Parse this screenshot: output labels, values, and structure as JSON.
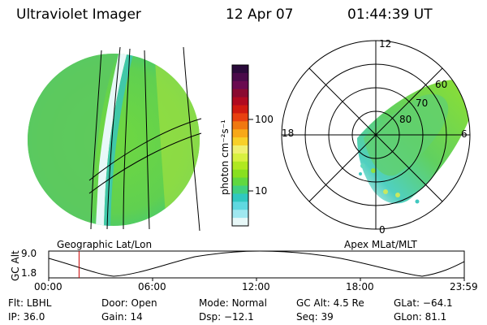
{
  "header": {
    "instrument": "Ultraviolet Imager",
    "date": "12 Apr 07",
    "time": "01:44:39 UT"
  },
  "colorbar": {
    "unit_label": "photon cm⁻²s⁻¹",
    "ticks": [
      "100",
      "10"
    ],
    "colors": [
      "#2a0a3a",
      "#4a0a4a",
      "#6a0a50",
      "#8a0a30",
      "#b00a20",
      "#d01a10",
      "#e84010",
      "#f07810",
      "#f8a818",
      "#f8d028",
      "#f0f070",
      "#d8f040",
      "#b0e820",
      "#88e020",
      "#60d840",
      "#40d080",
      "#30c8c0",
      "#60d8e0",
      "#a0e8f0",
      "#e8f8f8"
    ]
  },
  "panels": {
    "left_label": "Geographic Lat/Lon",
    "right_label": "Apex MLat/MLT"
  },
  "polar": {
    "mlt_labels": [
      "12",
      "18",
      "6",
      "0"
    ],
    "mlat_labels": [
      "60",
      "70",
      "80"
    ]
  },
  "altitude_plot": {
    "ylabel": "GC Alt",
    "ytick_top": "9.0",
    "ytick_bottom": "1.8",
    "xticks": [
      "00:00",
      "06:00",
      "12:00",
      "18:00",
      "23:59"
    ],
    "current_time_fraction": 0.073
  },
  "info": {
    "row1": [
      {
        "label": "Flt:",
        "value": "LBHL"
      },
      {
        "label": "Door:",
        "value": "Open"
      },
      {
        "label": "Mode:",
        "value": "Normal"
      },
      {
        "label": "GC Alt:",
        "value": "4.5 Re"
      },
      {
        "label": "GLat:",
        "value": "−64.1"
      }
    ],
    "row2": [
      {
        "label": "IP:",
        "value": "36.0"
      },
      {
        "label": "Gain:",
        "value": "14"
      },
      {
        "label": "Dsp:",
        "value": "−12.1"
      },
      {
        "label": "Seq:",
        "value": "39"
      },
      {
        "label": "GLon:",
        "value": "81.1"
      }
    ]
  }
}
